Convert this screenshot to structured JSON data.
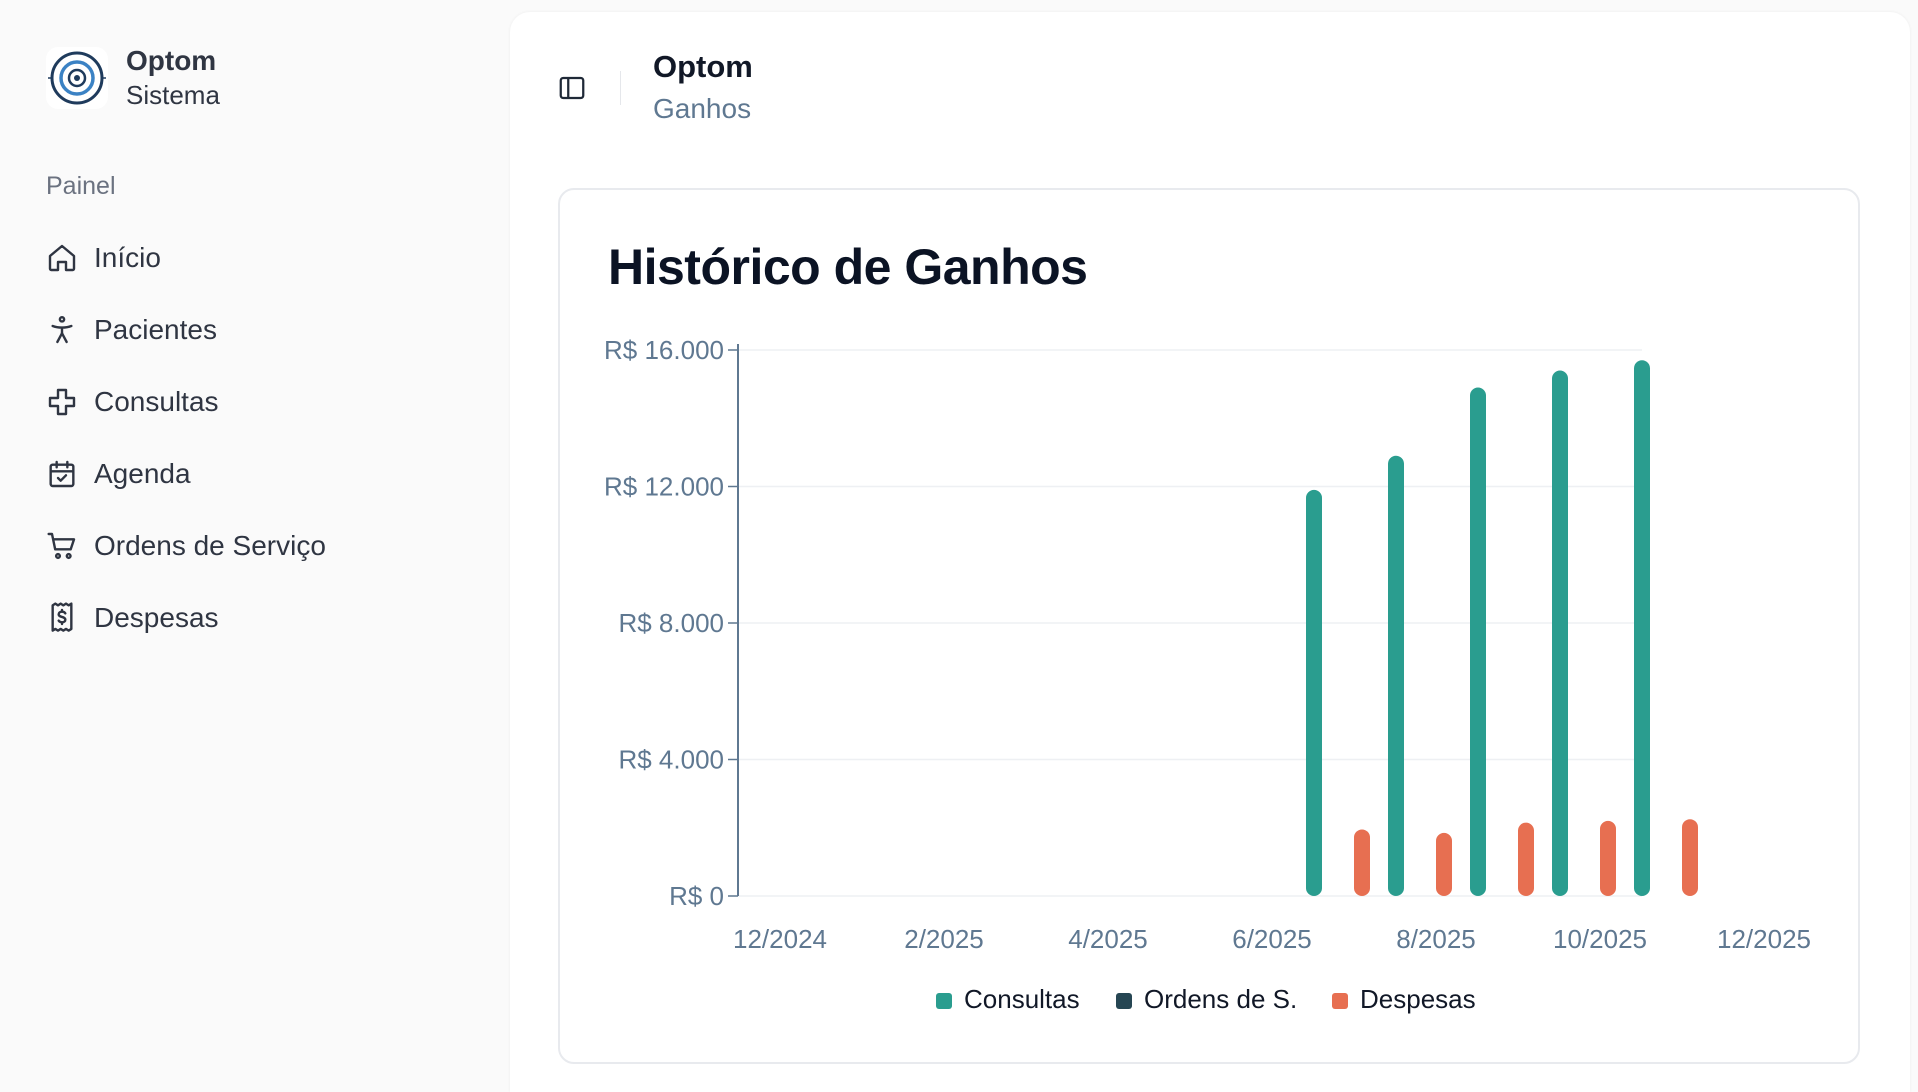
{
  "brand": {
    "name": "Optom",
    "subtitle": "Sistema"
  },
  "sidebar": {
    "section_label": "Painel",
    "items": [
      {
        "label": "Início",
        "icon": "home-icon"
      },
      {
        "label": "Pacientes",
        "icon": "person-icon"
      },
      {
        "label": "Consultas",
        "icon": "plus-cross-icon"
      },
      {
        "label": "Agenda",
        "icon": "calendar-check-icon"
      },
      {
        "label": "Ordens de Serviço",
        "icon": "shopping-cart-icon"
      },
      {
        "label": "Despesas",
        "icon": "receipt-dollar-icon"
      }
    ]
  },
  "header": {
    "title": "Optom",
    "subtitle": "Ganhos",
    "toggle_icon": "sidebar-toggle-icon"
  },
  "card": {
    "title": "Histórico de Ganhos"
  },
  "colors": {
    "consultas": "#2a9d8f",
    "ordens": "#264653",
    "despesas": "#e76f51",
    "axis": "#5f7891"
  },
  "chart_data": {
    "type": "bar",
    "title": "Histórico de Ganhos",
    "x_ticks": [
      "12/2024",
      "2/2025",
      "4/2025",
      "6/2025",
      "8/2025",
      "10/2025",
      "12/2025"
    ],
    "y_ticks": [
      "R$ 0",
      "R$ 4.000",
      "R$ 8.000",
      "R$ 12.000",
      "R$ 16.000"
    ],
    "ylim": [
      0,
      16000
    ],
    "grid": true,
    "legend_position": "bottom",
    "series": [
      {
        "name": "Consultas",
        "color": "#2a9d8f",
        "points": [
          {
            "x": "7/2025",
            "y": 11900
          },
          {
            "x": "8/2025",
            "y": 12900
          },
          {
            "x": "9/2025",
            "y": 14900
          },
          {
            "x": "10/2025",
            "y": 15400
          },
          {
            "x": "11/2025",
            "y": 15700
          }
        ]
      },
      {
        "name": "Ordens de S.",
        "color": "#264653",
        "points": []
      },
      {
        "name": "Despesas",
        "color": "#e76f51",
        "points": [
          {
            "x": "7/2025",
            "y": 1950
          },
          {
            "x": "8/2025",
            "y": 1850
          },
          {
            "x": "9/2025",
            "y": 2150
          },
          {
            "x": "10/2025",
            "y": 2200
          },
          {
            "x": "11/2025",
            "y": 2250
          }
        ]
      }
    ]
  }
}
